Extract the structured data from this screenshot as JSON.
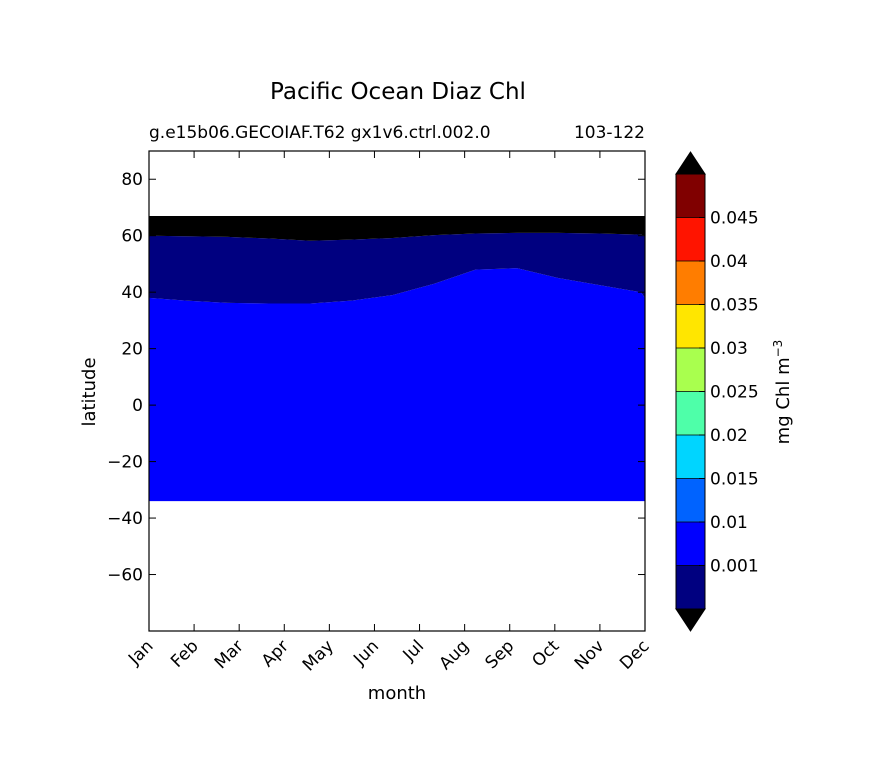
{
  "chart_data": {
    "type": "filled-contour",
    "title": "Pacific Ocean Diaz Chl",
    "subtitle_left": "g.e15b06.GECOIAF.T62 gx1v6.ctrl.002.0",
    "subtitle_right": "103-122",
    "xlabel": "month",
    "ylabel": "latitude",
    "x_ticks": [
      "Jan",
      "Feb",
      "Mar",
      "Apr",
      "May",
      "Jun",
      "Jul",
      "Aug",
      "Sep",
      "Oct",
      "Nov",
      "Dec"
    ],
    "ylim": [
      -80,
      90
    ],
    "y_ticks": [
      80,
      60,
      40,
      20,
      0,
      -20,
      -40,
      -60
    ],
    "y_tick_labels": [
      "80",
      "60",
      "40",
      "20",
      "0",
      "−20",
      "−40",
      "−60"
    ],
    "south_edge": -34,
    "boundary_top": 67,
    "boundary_60": [
      60.0,
      59.8,
      59.6,
      59.0,
      58.2,
      58.6,
      59.2,
      60.2,
      60.8,
      61.0,
      61.0,
      60.8,
      60.4,
      60.0
    ],
    "boundary_001": [
      38.0,
      37.0,
      36.2,
      36.0,
      36.0,
      37.0,
      39.0,
      43.0,
      48.0,
      48.5,
      45.0,
      42.5,
      40.0,
      38.0
    ],
    "boundary_x": [
      0,
      0.9,
      1.9,
      2.9,
      3.9,
      4.9,
      5.9,
      6.9,
      7.9,
      8.9,
      9.9,
      10.9,
      11.9,
      12
    ],
    "colorbar": {
      "label": "mg Chl m",
      "label_sup": "−3",
      "levels": [
        "0.001",
        "0.01",
        "0.015",
        "0.02",
        "0.025",
        "0.03",
        "0.035",
        "0.04",
        "0.045"
      ],
      "colors": [
        "#000080",
        "#0000ff",
        "#0063ff",
        "#00d5ff",
        "#4effa9",
        "#a9ff4e",
        "#ffe600",
        "#ff7d00",
        "#ff1400",
        "#800000"
      ],
      "under_color": "#000000",
      "over_color": "#000000"
    },
    "region_colors": {
      "land_top": "#000000",
      "high_lat": "#000080",
      "main": "#0000ff",
      "no_data": "#ffffff"
    }
  }
}
